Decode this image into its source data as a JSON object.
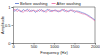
{
  "chart_data": {
    "type": "line",
    "x_label": "Frequency (Hz)",
    "y_label": "Amplitude",
    "x": [
      0,
      50,
      100,
      150,
      200,
      250,
      300,
      350,
      400,
      450,
      500,
      550,
      600,
      650,
      700,
      750,
      800,
      850,
      900,
      950,
      1000,
      1050,
      1100,
      1150,
      1200,
      1250,
      1300,
      1350,
      1400,
      1450,
      1500,
      1550,
      1600,
      1650,
      1700,
      1750,
      1800,
      1850,
      1900,
      1950,
      2000
    ],
    "series": [
      {
        "name": "Before washing",
        "color": "#4f6fd0",
        "values": [
          0.92,
          0.88,
          0.95,
          0.9,
          0.86,
          0.93,
          0.89,
          0.94,
          0.87,
          0.91,
          0.9,
          0.85,
          0.92,
          0.88,
          0.93,
          0.86,
          0.9,
          0.94,
          0.87,
          0.91,
          0.89,
          0.92,
          0.86,
          0.9,
          0.93,
          0.88,
          0.91,
          0.87,
          0.9,
          0.92,
          0.85,
          0.89,
          0.88,
          0.86,
          0.84,
          0.82,
          0.79,
          0.76,
          0.72,
          0.68,
          0.64
        ]
      },
      {
        "name": "After washing",
        "color": "#e8609c",
        "values": [
          0.9,
          0.94,
          0.87,
          0.92,
          0.89,
          0.85,
          0.91,
          0.88,
          0.93,
          0.86,
          0.92,
          0.89,
          0.87,
          0.94,
          0.88,
          0.91,
          0.85,
          0.9,
          0.93,
          0.86,
          0.92,
          0.88,
          0.9,
          0.87,
          0.91,
          0.94,
          0.86,
          0.89,
          0.92,
          0.88,
          0.9,
          0.87,
          0.85,
          0.83,
          0.81,
          0.8,
          0.77,
          0.73,
          0.7,
          0.66,
          0.61
        ]
      }
    ],
    "xlim": [
      0,
      2000
    ],
    "xticks": [
      0,
      500,
      1000,
      1500,
      2000
    ],
    "ylim": [
      0,
      1
    ],
    "yticks": [
      0,
      0.5,
      1
    ],
    "grid": false,
    "legend": "top"
  }
}
